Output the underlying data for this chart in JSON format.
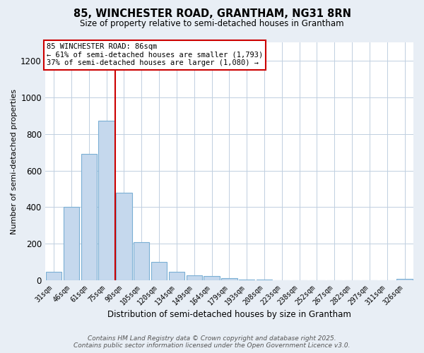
{
  "title_line1": "85, WINCHESTER ROAD, GRANTHAM, NG31 8RN",
  "title_line2": "Size of property relative to semi-detached houses in Grantham",
  "xlabel": "Distribution of semi-detached houses by size in Grantham",
  "ylabel": "Number of semi-detached properties",
  "categories": [
    "31sqm",
    "46sqm",
    "61sqm",
    "75sqm",
    "90sqm",
    "105sqm",
    "120sqm",
    "134sqm",
    "149sqm",
    "164sqm",
    "179sqm",
    "193sqm",
    "208sqm",
    "223sqm",
    "238sqm",
    "252sqm",
    "267sqm",
    "282sqm",
    "297sqm",
    "311sqm",
    "326sqm"
  ],
  "values": [
    45,
    400,
    690,
    870,
    480,
    210,
    100,
    45,
    28,
    25,
    10,
    5,
    3,
    2,
    2,
    1,
    1,
    0,
    0,
    0,
    8
  ],
  "bar_color": "#c5d8ed",
  "bar_edge_color": "#7aafd4",
  "property_label": "85 WINCHESTER ROAD: 86sqm",
  "smaller_text": "← 61% of semi-detached houses are smaller (1,793)",
  "larger_text": "37% of semi-detached houses are larger (1,080) →",
  "annotation_box_color": "#cc0000",
  "vline_color": "#cc0000",
  "vline_x": 3.5,
  "ylim": [
    0,
    1300
  ],
  "yticks": [
    0,
    200,
    400,
    600,
    800,
    1000,
    1200
  ],
  "footer_line1": "Contains HM Land Registry data © Crown copyright and database right 2025.",
  "footer_line2": "Contains public sector information licensed under the Open Government Licence v3.0.",
  "background_color": "#e8eef5",
  "plot_bg_color": "#ffffff",
  "grid_color": "#c0cfe0"
}
